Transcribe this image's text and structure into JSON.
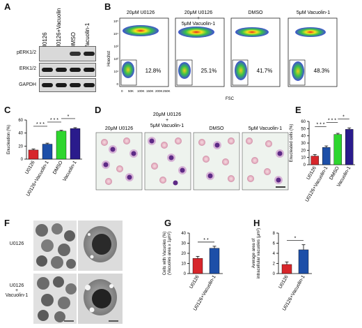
{
  "panels": {
    "A": {
      "label": "A",
      "lanes": [
        "U0126",
        "U0126+Vacuolin-1",
        "DMSO",
        "Vacuolin-1"
      ],
      "rows": [
        "pERK1/2",
        "ERK1/2",
        "GAPDH"
      ]
    },
    "B": {
      "label": "B",
      "conditions": [
        {
          "title": "20μM U0126",
          "percent": "12.8%"
        },
        {
          "title": "20μM U0126\n+\n5μM Vacuolin-1",
          "percent": "25.1%"
        },
        {
          "title": "DMSO",
          "percent": "41.7%"
        },
        {
          "title": "5μM Vacuolin-1",
          "percent": "48.3%"
        }
      ],
      "ylabel": "Hoechst",
      "xlabel": "FSC",
      "yticks": [
        "10⁵",
        "10⁴",
        "10³",
        "10²",
        "10¹",
        "0"
      ],
      "xticks": [
        "0",
        "50K",
        "100K",
        "150K",
        "200K",
        "250K"
      ]
    },
    "D": {
      "label": "D",
      "titles": [
        "20μM U0126",
        "20μM U0126\n+\n5μM Vacuolin-1",
        "DMSO",
        "5μM Vacuolin-1"
      ]
    },
    "F": {
      "label": "F",
      "row_labels": [
        "U0126",
        "U0126\n+\nVacuolin-1"
      ]
    }
  },
  "colors": {
    "red": "#d7262b",
    "blue": "#1d4fa8",
    "green": "#2ed62e",
    "navy": "#2a1b8c"
  },
  "chart_data": [
    {
      "id": "C",
      "label": "C",
      "type": "bar",
      "categories": [
        "U0126",
        "U0126+Vacuolin-1",
        "DMSO",
        "Vacuolin-1"
      ],
      "values": [
        14,
        23,
        43,
        47
      ],
      "errors": [
        1.5,
        1.5,
        1.2,
        1.3
      ],
      "ylabel": "Enucleation (%)",
      "ylim": [
        0,
        60
      ],
      "yticks": [
        0,
        20,
        40,
        60
      ],
      "colors": [
        "#d7262b",
        "#1d4fa8",
        "#2ed62e",
        "#2a1b8c"
      ],
      "significance": [
        "* * *",
        "* * *",
        "*"
      ]
    },
    {
      "id": "E",
      "label": "E",
      "type": "bar",
      "categories": [
        "U0126",
        "U0126+Vacuolin-1",
        "DMSO",
        "Vacuolin-1"
      ],
      "values": [
        12,
        24,
        42,
        49
      ],
      "errors": [
        2,
        2,
        1.5,
        2
      ],
      "ylabel": "Enucleated cells (%)",
      "ylim": [
        0,
        60
      ],
      "yticks": [
        0,
        10,
        20,
        30,
        40,
        50,
        60
      ],
      "colors": [
        "#d7262b",
        "#1d4fa8",
        "#2ed62e",
        "#2a1b8c"
      ],
      "significance": [
        "* * *",
        "* * *",
        "*"
      ]
    },
    {
      "id": "G",
      "label": "G",
      "type": "bar",
      "categories": [
        "U0126",
        "U0126+Vacuolin-1"
      ],
      "values": [
        15,
        25
      ],
      "errors": [
        2,
        2
      ],
      "ylabel": "Cells with Vacuoles (%)\n(Vacuoles area ≥ 1μm²)",
      "ylim": [
        0,
        40
      ],
      "yticks": [
        0,
        10,
        20,
        30,
        40
      ],
      "colors": [
        "#d7262b",
        "#1d4fa8"
      ],
      "significance": [
        "* *"
      ]
    },
    {
      "id": "H",
      "label": "H",
      "type": "bar",
      "categories": [
        "U0126",
        "U0126+Vacuolin-1"
      ],
      "values": [
        1.8,
        4.7
      ],
      "errors": [
        0.5,
        1.0
      ],
      "ylabel": "Average area of\nintracellular vacuoles (μm²)",
      "ylim": [
        0,
        8
      ],
      "yticks": [
        0,
        2,
        4,
        6,
        8
      ],
      "colors": [
        "#d7262b",
        "#1d4fa8"
      ],
      "significance": [
        "*"
      ]
    }
  ]
}
